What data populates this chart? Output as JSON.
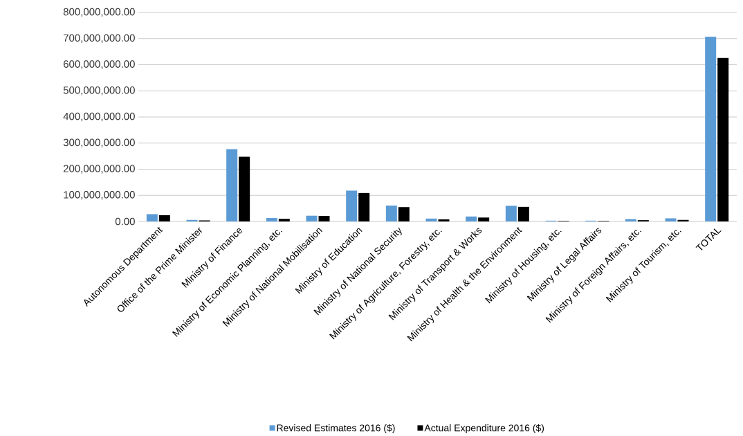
{
  "chart_data": {
    "type": "bar",
    "categories": [
      "Autonomous Department",
      "Office of the Prime Minister",
      "Ministry of Finance",
      "Ministry of Economic Planning, etc.",
      "Ministry of National Mobilisation",
      "Ministry of Education",
      "Ministry of National Security",
      "Ministry of Agriculture, Forestry, etc.",
      "Ministry of Transport & Works",
      "Ministry of Health & the Environment",
      "Ministry of Housing, etc.",
      "Ministry of Legal Affairs",
      "Ministry of Foreign Affairs, etc.",
      "Ministry of Tourism, etc.",
      "TOTAL"
    ],
    "series": [
      {
        "name": "Revised Estimates 2016 ($)",
        "color": "#5b9bd5",
        "values": [
          28000000,
          6000000,
          277000000,
          13000000,
          22000000,
          118000000,
          61000000,
          11000000,
          19000000,
          60000000,
          3000000,
          3000000,
          9000000,
          12000000,
          707000000
        ]
      },
      {
        "name": "Actual Expenditure 2016 ($)",
        "color": "#000000",
        "values": [
          24000000,
          4000000,
          248000000,
          10000000,
          21000000,
          109000000,
          55000000,
          8000000,
          15000000,
          56000000,
          2000000,
          2000000,
          5000000,
          6000000,
          626000000
        ]
      }
    ],
    "ylim": [
      0,
      800000000
    ],
    "yticks": [
      {
        "value": 0,
        "label": "0.00"
      },
      {
        "value": 100000000,
        "label": "100,000,000.00"
      },
      {
        "value": 200000000,
        "label": "200,000,000.00"
      },
      {
        "value": 300000000,
        "label": "300,000,000.00"
      },
      {
        "value": 400000000,
        "label": "400,000,000.00"
      },
      {
        "value": 500000000,
        "label": "500,000,000.00"
      },
      {
        "value": 600000000,
        "label": "600,000,000.00"
      },
      {
        "value": 700000000,
        "label": "700,000,000.00"
      },
      {
        "value": 800000000,
        "label": "800,000,000.00"
      }
    ],
    "grid": "y",
    "legend": "bottom"
  }
}
